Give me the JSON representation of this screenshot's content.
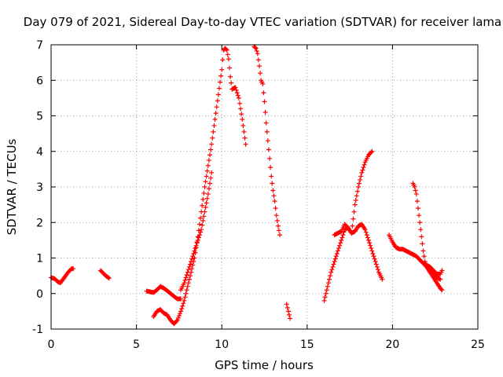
{
  "chart_data": {
    "type": "scatter",
    "title": "Day 079 of 2021, Sidereal Day-to-day VTEC variation (SDTVAR) for receiver lama",
    "xlabel": "GPS time / hours",
    "ylabel": "SDTVAR / TECUs",
    "xlim": [
      0,
      25
    ],
    "ylim": [
      -1,
      7
    ],
    "xticks": [
      "0",
      "5",
      "10",
      "15",
      "20",
      "25"
    ],
    "yticks": [
      "-1",
      "0",
      "1",
      "2",
      "3",
      "4",
      "5",
      "6",
      "7"
    ],
    "grid": true,
    "marker": "plus",
    "color": "#ff0000",
    "series": [
      {
        "x": [
          0,
          0.2,
          0.4,
          0.55,
          0.7,
          0.85,
          1.0,
          1.1,
          1.2,
          1.3
        ],
        "y": [
          0.45,
          0.42,
          0.33,
          0.3,
          0.4,
          0.5,
          0.6,
          0.65,
          0.7,
          0.7
        ]
      },
      {
        "x": [
          2.9,
          3.0,
          3.1,
          3.2,
          3.3,
          3.4
        ],
        "y": [
          0.65,
          0.6,
          0.55,
          0.5,
          0.47,
          0.43
        ]
      },
      {
        "x": [
          5.6,
          5.8,
          6.0,
          6.2,
          6.4,
          6.6,
          6.8,
          7.0,
          7.2,
          7.4,
          7.6
        ],
        "y": [
          0.07,
          0.05,
          0.03,
          0.1,
          0.2,
          0.15,
          0.08,
          0.0,
          -0.08,
          -0.15,
          -0.15
        ]
      },
      {
        "x": [
          6.0,
          6.2,
          6.4,
          6.6,
          6.8,
          7.0,
          7.2,
          7.4,
          7.6,
          7.8,
          8.0,
          8.2,
          8.4,
          8.6,
          8.8,
          9.0,
          9.2,
          9.4,
          9.6,
          9.8,
          10.0,
          10.1,
          10.2,
          10.3,
          10.4,
          10.5,
          10.6,
          10.8,
          11.0,
          11.2,
          11.4
        ],
        "y": [
          -0.65,
          -0.5,
          -0.45,
          -0.55,
          -0.6,
          -0.75,
          -0.85,
          -0.75,
          -0.5,
          -0.2,
          0.2,
          0.6,
          1.0,
          1.6,
          2.3,
          3.0,
          3.6,
          4.2,
          4.9,
          5.6,
          6.3,
          6.85,
          6.9,
          6.85,
          6.6,
          6.1,
          5.75,
          5.8,
          5.5,
          4.9,
          4.2
        ]
      },
      {
        "x": [
          7.6,
          7.8,
          8.0,
          8.2,
          8.4,
          8.6,
          8.8,
          9.0,
          9.2,
          9.4
        ],
        "y": [
          0.1,
          0.3,
          0.6,
          0.9,
          1.2,
          1.5,
          1.8,
          2.3,
          2.8,
          3.4
        ]
      },
      {
        "x": [
          11.9,
          12.0,
          12.1,
          12.2,
          12.3,
          12.4,
          12.5,
          12.6,
          12.7,
          12.8,
          12.9,
          13.0,
          13.1,
          13.2,
          13.3,
          13.4
        ],
        "y": [
          6.95,
          6.9,
          6.75,
          6.4,
          6.0,
          5.9,
          5.4,
          4.8,
          4.3,
          3.8,
          3.3,
          2.9,
          2.6,
          2.2,
          1.9,
          1.65
        ]
      },
      {
        "x": [
          13.8,
          13.9,
          14.0
        ],
        "y": [
          -0.3,
          -0.5,
          -0.7
        ]
      },
      {
        "x": [
          16.0,
          16.2,
          16.4,
          16.6,
          16.8,
          17.0,
          17.2,
          17.4,
          17.6,
          17.8,
          18.0,
          18.2,
          18.4,
          18.6,
          18.8
        ],
        "y": [
          -0.2,
          0.2,
          0.6,
          0.9,
          1.2,
          1.5,
          1.8,
          1.85,
          1.7,
          2.5,
          3.0,
          3.4,
          3.7,
          3.9,
          4.0
        ]
      },
      {
        "x": [
          16.6,
          16.8,
          17.0,
          17.2,
          17.4,
          17.6,
          17.8,
          18.0,
          18.2,
          18.4,
          18.6,
          18.8,
          19.0,
          19.2,
          19.4
        ],
        "y": [
          1.65,
          1.7,
          1.75,
          1.95,
          1.85,
          1.7,
          1.75,
          1.9,
          1.95,
          1.8,
          1.5,
          1.2,
          0.9,
          0.6,
          0.4
        ]
      },
      {
        "x": [
          19.8,
          20.0,
          20.2,
          20.4,
          20.6,
          20.8,
          21.0,
          21.2,
          21.4,
          21.6,
          21.8,
          22.0,
          22.2,
          22.4,
          22.6,
          22.8
        ],
        "y": [
          1.65,
          1.45,
          1.3,
          1.25,
          1.25,
          1.2,
          1.15,
          1.1,
          1.05,
          0.95,
          0.85,
          0.75,
          0.65,
          0.55,
          0.45,
          0.4
        ]
      },
      {
        "x": [
          21.2,
          21.3,
          21.4,
          21.5,
          21.6,
          21.7,
          21.8,
          21.9,
          22.0,
          22.2,
          22.4,
          22.6,
          22.8,
          22.9
        ],
        "y": [
          3.1,
          3.0,
          2.8,
          2.4,
          2.0,
          1.6,
          1.2,
          0.9,
          0.75,
          0.6,
          0.45,
          0.3,
          0.15,
          0.1
        ]
      },
      {
        "x": [
          21.6,
          21.8,
          22.0,
          22.2,
          22.4,
          22.6,
          22.8,
          22.9
        ],
        "y": [
          0.95,
          0.85,
          0.8,
          0.75,
          0.65,
          0.55,
          0.55,
          0.65
        ]
      }
    ]
  }
}
